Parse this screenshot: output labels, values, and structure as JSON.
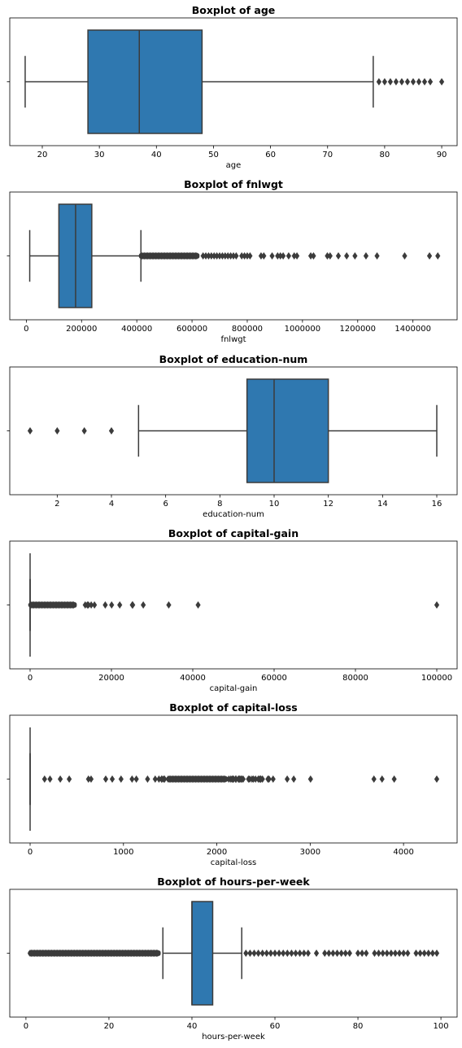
{
  "chart_data": [
    {
      "type": "boxplot",
      "title": "Boxplot of age",
      "xlabel": "age",
      "xlim": [
        14.3,
        92.7
      ],
      "xticks": [
        20,
        30,
        40,
        50,
        60,
        70,
        80,
        90
      ],
      "tick_labels": [
        "20",
        "30",
        "40",
        "50",
        "60",
        "70",
        "80",
        "90"
      ],
      "box": {
        "whisker_low": 17,
        "q1": 28,
        "median": 37,
        "q3": 48,
        "whisker_high": 78
      },
      "outliers": [
        79,
        80,
        81,
        82,
        83,
        84,
        85,
        86,
        87,
        88,
        90
      ],
      "color": "#2f78b0"
    },
    {
      "type": "boxplot",
      "title": "Boxplot of fnlwgt",
      "xlabel": "fnlwgt",
      "xlim": [
        -60000,
        1560000
      ],
      "xticks": [
        0,
        200000,
        400000,
        600000,
        800000,
        1000000,
        1200000,
        1400000
      ],
      "tick_labels": [
        "0",
        "200000",
        "400000",
        "600000",
        "800000",
        "1000000",
        "1200000",
        "1400000"
      ],
      "box": {
        "whisker_low": 12285,
        "q1": 117827,
        "median": 178356,
        "q3": 237051,
        "whisker_high": 415000
      },
      "outlier_cluster": [
        415000,
        620000
      ],
      "outliers": [
        640000,
        650000,
        660000,
        670000,
        680000,
        690000,
        700000,
        710000,
        720000,
        730000,
        740000,
        750000,
        760000,
        780000,
        790000,
        800000,
        810000,
        850000,
        860000,
        890000,
        910000,
        920000,
        930000,
        950000,
        970000,
        980000,
        1030000,
        1040000,
        1090000,
        1100000,
        1130000,
        1160000,
        1190000,
        1230000,
        1270000,
        1370000,
        1460000,
        1490000
      ],
      "color": "#2f78b0"
    },
    {
      "type": "boxplot",
      "title": "Boxplot of education-num",
      "xlabel": "education-num",
      "xlim": [
        0.25,
        16.75
      ],
      "xticks": [
        2,
        4,
        6,
        8,
        10,
        12,
        14,
        16
      ],
      "tick_labels": [
        "2",
        "4",
        "6",
        "8",
        "10",
        "12",
        "14",
        "16"
      ],
      "box": {
        "whisker_low": 5,
        "q1": 9,
        "median": 10,
        "q3": 12,
        "whisker_high": 16
      },
      "outliers": [
        1,
        2,
        3,
        4
      ],
      "color": "#2f78b0"
    },
    {
      "type": "boxplot",
      "title": "Boxplot of capital-gain",
      "xlabel": "capital-gain",
      "xlim": [
        -5000,
        105000
      ],
      "xticks": [
        0,
        20000,
        40000,
        60000,
        80000,
        100000
      ],
      "tick_labels": [
        "0",
        "20000",
        "40000",
        "60000",
        "80000",
        "100000"
      ],
      "box": {
        "whisker_low": 0,
        "q1": 0,
        "median": 0,
        "q3": 0,
        "whisker_high": 0
      },
      "outlier_cluster": [
        100,
        11000
      ],
      "outliers": [
        13550,
        14084,
        14344,
        15024,
        15831,
        18481,
        20051,
        22040,
        25124,
        25236,
        27828,
        34095,
        41310,
        99999
      ],
      "color": "#2f78b0"
    },
    {
      "type": "boxplot",
      "title": "Boxplot of capital-loss",
      "xlabel": "capital-loss",
      "xlim": [
        -218,
        4574
      ],
      "xticks": [
        0,
        1000,
        2000,
        3000,
        4000
      ],
      "tick_labels": [
        "0",
        "1000",
        "2000",
        "3000",
        "4000"
      ],
      "box": {
        "whisker_low": 0,
        "q1": 0,
        "median": 0,
        "q3": 0,
        "whisker_high": 0
      },
      "outlier_cluster": [
        1480,
        2100
      ],
      "outliers": [
        155,
        213,
        323,
        419,
        625,
        653,
        810,
        880,
        974,
        1092,
        1138,
        1258,
        1340,
        1380,
        1408,
        1411,
        1429,
        1440,
        2129,
        2149,
        2163,
        2174,
        2179,
        2201,
        2205,
        2206,
        2231,
        2238,
        2246,
        2258,
        2267,
        2282,
        2339,
        2352,
        2377,
        2392,
        2415,
        2444,
        2457,
        2467,
        2472,
        2489,
        2547,
        2559,
        2603,
        2754,
        2824,
        3004,
        3683,
        3770,
        3900,
        4356
      ],
      "color": "#2f78b0"
    },
    {
      "type": "boxplot",
      "title": "Boxplot of hours-per-week",
      "xlabel": "hours-per-week",
      "xlim": [
        -3.9,
        103.9
      ],
      "xticks": [
        0,
        20,
        40,
        60,
        80,
        100
      ],
      "tick_labels": [
        "0",
        "20",
        "40",
        "60",
        "80",
        "100"
      ],
      "box": {
        "whisker_low": 33,
        "q1": 40,
        "median": 40,
        "q3": 45,
        "whisker_high": 52
      },
      "outlier_cluster": [
        1,
        32
      ],
      "outliers": [
        53,
        54,
        55,
        56,
        57,
        58,
        59,
        60,
        61,
        62,
        63,
        64,
        65,
        66,
        67,
        68,
        70,
        72,
        73,
        74,
        75,
        76,
        77,
        78,
        80,
        81,
        82,
        84,
        85,
        86,
        87,
        88,
        89,
        90,
        91,
        92,
        94,
        95,
        96,
        97,
        98,
        99
      ],
      "color": "#2f78b0"
    }
  ]
}
